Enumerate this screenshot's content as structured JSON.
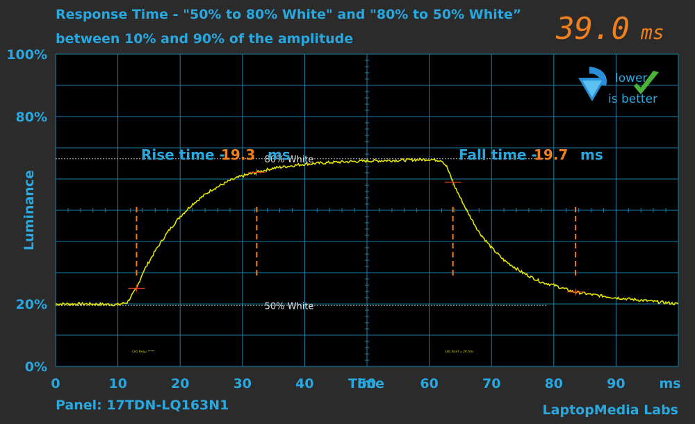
{
  "title_line1": "Response Time - \"50% to 80% White\" and \"80% to 50% White”",
  "title_line2": "between 10% and 90% of the amplitude",
  "result_value": "39.0",
  "result_unit": "ms",
  "lower_is_better": {
    "line1": "lower",
    "line2": "is better"
  },
  "rise_label": "Rise time -",
  "rise_value": "19.3",
  "rise_unit": "ms",
  "fall_label": "Fall time -",
  "fall_value": "19.7",
  "fall_unit": "ms",
  "panel": "Panel: 17TDN-LQ163N1",
  "brand": "LaptopMedia Labs",
  "scope_note_left": "CH1 Freq= *****",
  "scope_note_right": "CH1 RiseT = 29.7ms",
  "colors": {
    "background": "#2b2b2b",
    "plot": "#000000",
    "grid": "#1a7fa8",
    "accent": "#29a8e0",
    "value": "#f07f1f",
    "trace": "#e5e500"
  },
  "chart_data": {
    "type": "line",
    "xlabel": "Time",
    "ylabel": "Luminance",
    "xlim": [
      0,
      100
    ],
    "ylim": [
      0,
      100
    ],
    "x_ticks": [
      "0",
      "10",
      "20",
      "30",
      "40",
      "50",
      "60",
      "70",
      "80",
      "90",
      "ms"
    ],
    "y_ticks": [
      "0%",
      "20%",
      "80%",
      "100%"
    ],
    "grid": true,
    "reference_lines": [
      {
        "label": "80% White",
        "y": 66.5
      },
      {
        "label": "50% White",
        "y": 19.5
      }
    ],
    "markers": [
      {
        "x": 13.0
      },
      {
        "x": 32.3
      },
      {
        "x": 63.8
      },
      {
        "x": 83.5
      }
    ],
    "series": [
      {
        "x": [
          0,
          5,
          10,
          11.5,
          12,
          13,
          14,
          16,
          18,
          20,
          22,
          25,
          28,
          30,
          32,
          35,
          40,
          45,
          50,
          55,
          60,
          62,
          62.8,
          64,
          66,
          68,
          70,
          72,
          75,
          78,
          80,
          83,
          86,
          90,
          95,
          100
        ],
        "y": [
          20,
          20,
          19.8,
          20.5,
          22,
          25,
          30,
          37,
          43,
          48,
          52,
          56.5,
          59.5,
          61,
          62,
          63.5,
          64.8,
          65.4,
          65.8,
          66,
          66.3,
          66,
          64,
          58,
          50,
          43,
          38,
          34,
          30,
          27,
          26,
          24,
          23,
          22,
          21,
          20
        ]
      }
    ]
  }
}
